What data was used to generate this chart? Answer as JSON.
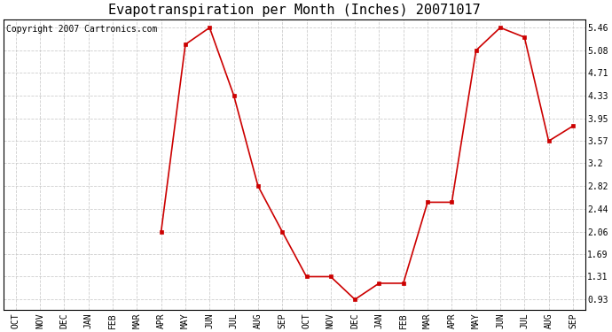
{
  "title": "Evapotranspiration per Month (Inches) 20071017",
  "copyright": "Copyright 2007 Cartronics.com",
  "months": [
    "OCT",
    "NOV",
    "DEC",
    "JAN",
    "FEB",
    "MAR",
    "APR",
    "MAY",
    "JUN",
    "JUL",
    "AUG",
    "SEP",
    "OCT",
    "NOV",
    "DEC",
    "JAN",
    "FEB",
    "MAR",
    "APR",
    "MAY",
    "JUN",
    "JUL",
    "AUG",
    "SEP"
  ],
  "values": [
    null,
    null,
    null,
    null,
    null,
    null,
    2.06,
    5.18,
    5.46,
    4.33,
    2.82,
    2.06,
    1.31,
    1.31,
    0.93,
    1.2,
    1.2,
    2.55,
    2.55,
    5.08,
    5.46,
    5.3,
    3.57,
    3.82
  ],
  "yticks": [
    0.93,
    1.31,
    1.69,
    2.06,
    2.44,
    2.82,
    3.2,
    3.57,
    3.95,
    4.33,
    4.71,
    5.08,
    5.46
  ],
  "line_color": "#cc0000",
  "marker": "s",
  "marker_size": 3,
  "bg_color": "#ffffff",
  "grid_color": "#c8c8c8",
  "ylim_min": 0.75,
  "ylim_max": 5.6,
  "title_fontsize": 11,
  "tick_fontsize": 7,
  "copyright_fontsize": 7,
  "fig_width": 6.9,
  "fig_height": 3.75
}
